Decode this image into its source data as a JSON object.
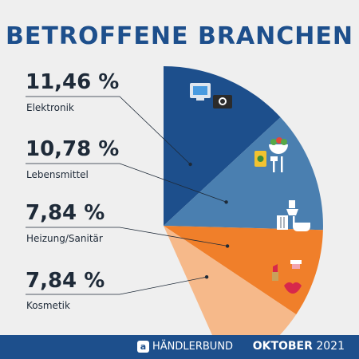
{
  "title": "BETROFFENE BRANCHEN",
  "chart_data": {
    "type": "pie",
    "title": "BETROFFENE BRANCHEN",
    "categories": [
      "Elektronik",
      "Lebensmittel",
      "Heizung/Sanitär",
      "Kosmetik"
    ],
    "values": [
      11.46,
      10.78,
      7.84,
      7.84
    ],
    "value_labels": [
      "11,46 %",
      "10,78 %",
      "7,84 %",
      "7,84 %"
    ],
    "colors": [
      "#1d4f8c",
      "#4a7fb0",
      "#f07f2a",
      "#f6b98a"
    ],
    "icons": [
      [
        "computer-icon",
        "camera-icon"
      ],
      [
        "salad-bowl-icon",
        "food-can-icon",
        "cutlery-icon"
      ],
      [
        "toilet-icon",
        "radiator-icon",
        "bathtub-icon"
      ],
      [
        "lipstick-icon",
        "nail-polish-icon",
        "lips-icon"
      ]
    ]
  },
  "footer": {
    "brand": "HÄNDLERBUND",
    "logo_glyph": "a",
    "month": "OKTOBER",
    "year": "2021"
  }
}
